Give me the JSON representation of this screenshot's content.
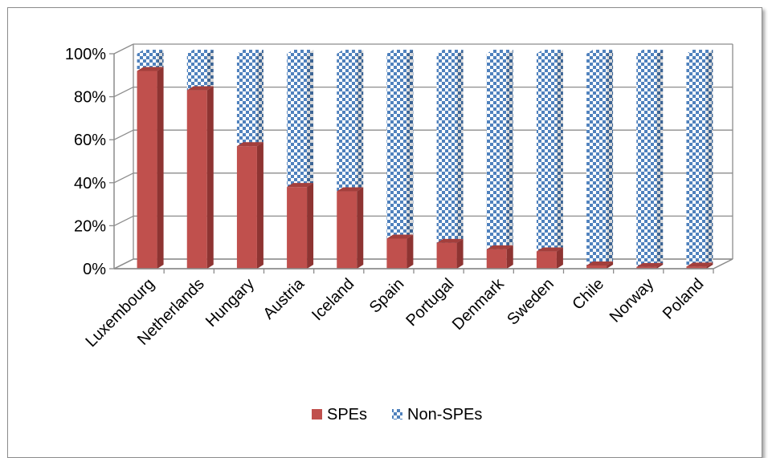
{
  "chart_data": {
    "type": "bar",
    "stacked": true,
    "percent_stacked": true,
    "three_d": true,
    "categories": [
      "Luxembourg",
      "Netherlands",
      "Hungary",
      "Austria",
      "Iceland",
      "Spain",
      "Portugal",
      "Denmark",
      "Sweden",
      "Chile",
      "Norway",
      "Poland"
    ],
    "series": [
      {
        "name": "SPEs",
        "color": "#c0504d",
        "values": [
          92,
          83,
          57,
          38,
          36,
          14,
          12,
          9,
          8,
          1.5,
          0.8,
          1
        ]
      },
      {
        "name": "Non-SPEs",
        "color": "#4f81bd",
        "pattern": "checkerboard",
        "values": [
          8,
          17,
          43,
          62,
          64,
          86,
          88,
          91,
          92,
          98.5,
          99.2,
          99
        ]
      }
    ],
    "y_ticks": [
      "0%",
      "20%",
      "40%",
      "60%",
      "80%",
      "100%"
    ],
    "ylim": [
      0,
      100
    ],
    "grid": true,
    "legend_position": "bottom",
    "title": "",
    "xlabel": "",
    "ylabel": ""
  }
}
